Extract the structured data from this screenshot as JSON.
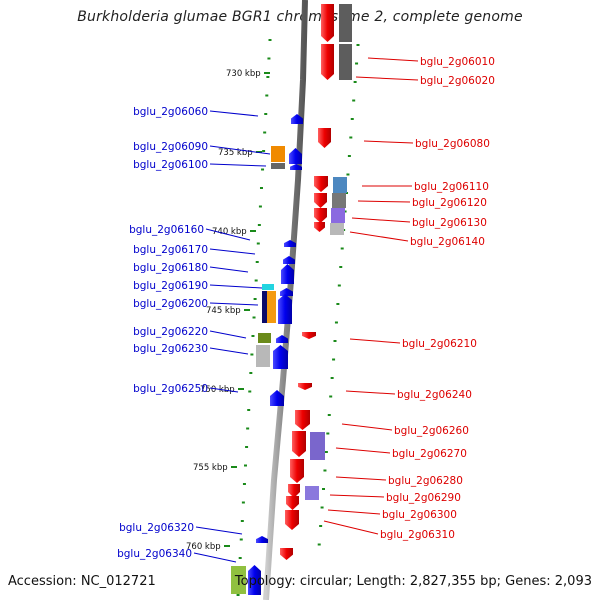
{
  "title": "Burkholderia glumae BGR1 chromosome 2, complete genome",
  "footer": {
    "accession": "Accession: NC_012721",
    "topology": "Topology: circular; Length: 2,827,355 bp; Genes: 2,093"
  },
  "colors": {
    "forward_label": "#0000cc",
    "reverse_label": "#dd0000",
    "backbone": "#888888",
    "tick": "#1a8a1a"
  },
  "kbp_marks": [
    "730 kbp",
    "735 kbp",
    "740 kbp",
    "745 kbp",
    "750 kbp",
    "755 kbp",
    "760 kbp"
  ],
  "left_labels": [
    "bglu_2g06060",
    "bglu_2g06090",
    "bglu_2g06100",
    "bglu_2g06160",
    "bglu_2g06170",
    "bglu_2g06180",
    "bglu_2g06190",
    "bglu_2g06200",
    "bglu_2g06220",
    "bglu_2g06230",
    "bglu_2g06250",
    "bglu_2g06320",
    "bglu_2g06340"
  ],
  "right_labels": [
    "bglu_2g06010",
    "bglu_2g06020",
    "bglu_2g06080",
    "bglu_2g06110",
    "bglu_2g06120",
    "bglu_2g06130",
    "bglu_2g06140",
    "bglu_2g06210",
    "bglu_2g06240",
    "bglu_2g06260",
    "bglu_2g06270",
    "bglu_2g06280",
    "bglu_2g06290",
    "bglu_2g06300",
    "bglu_2g06310"
  ]
}
